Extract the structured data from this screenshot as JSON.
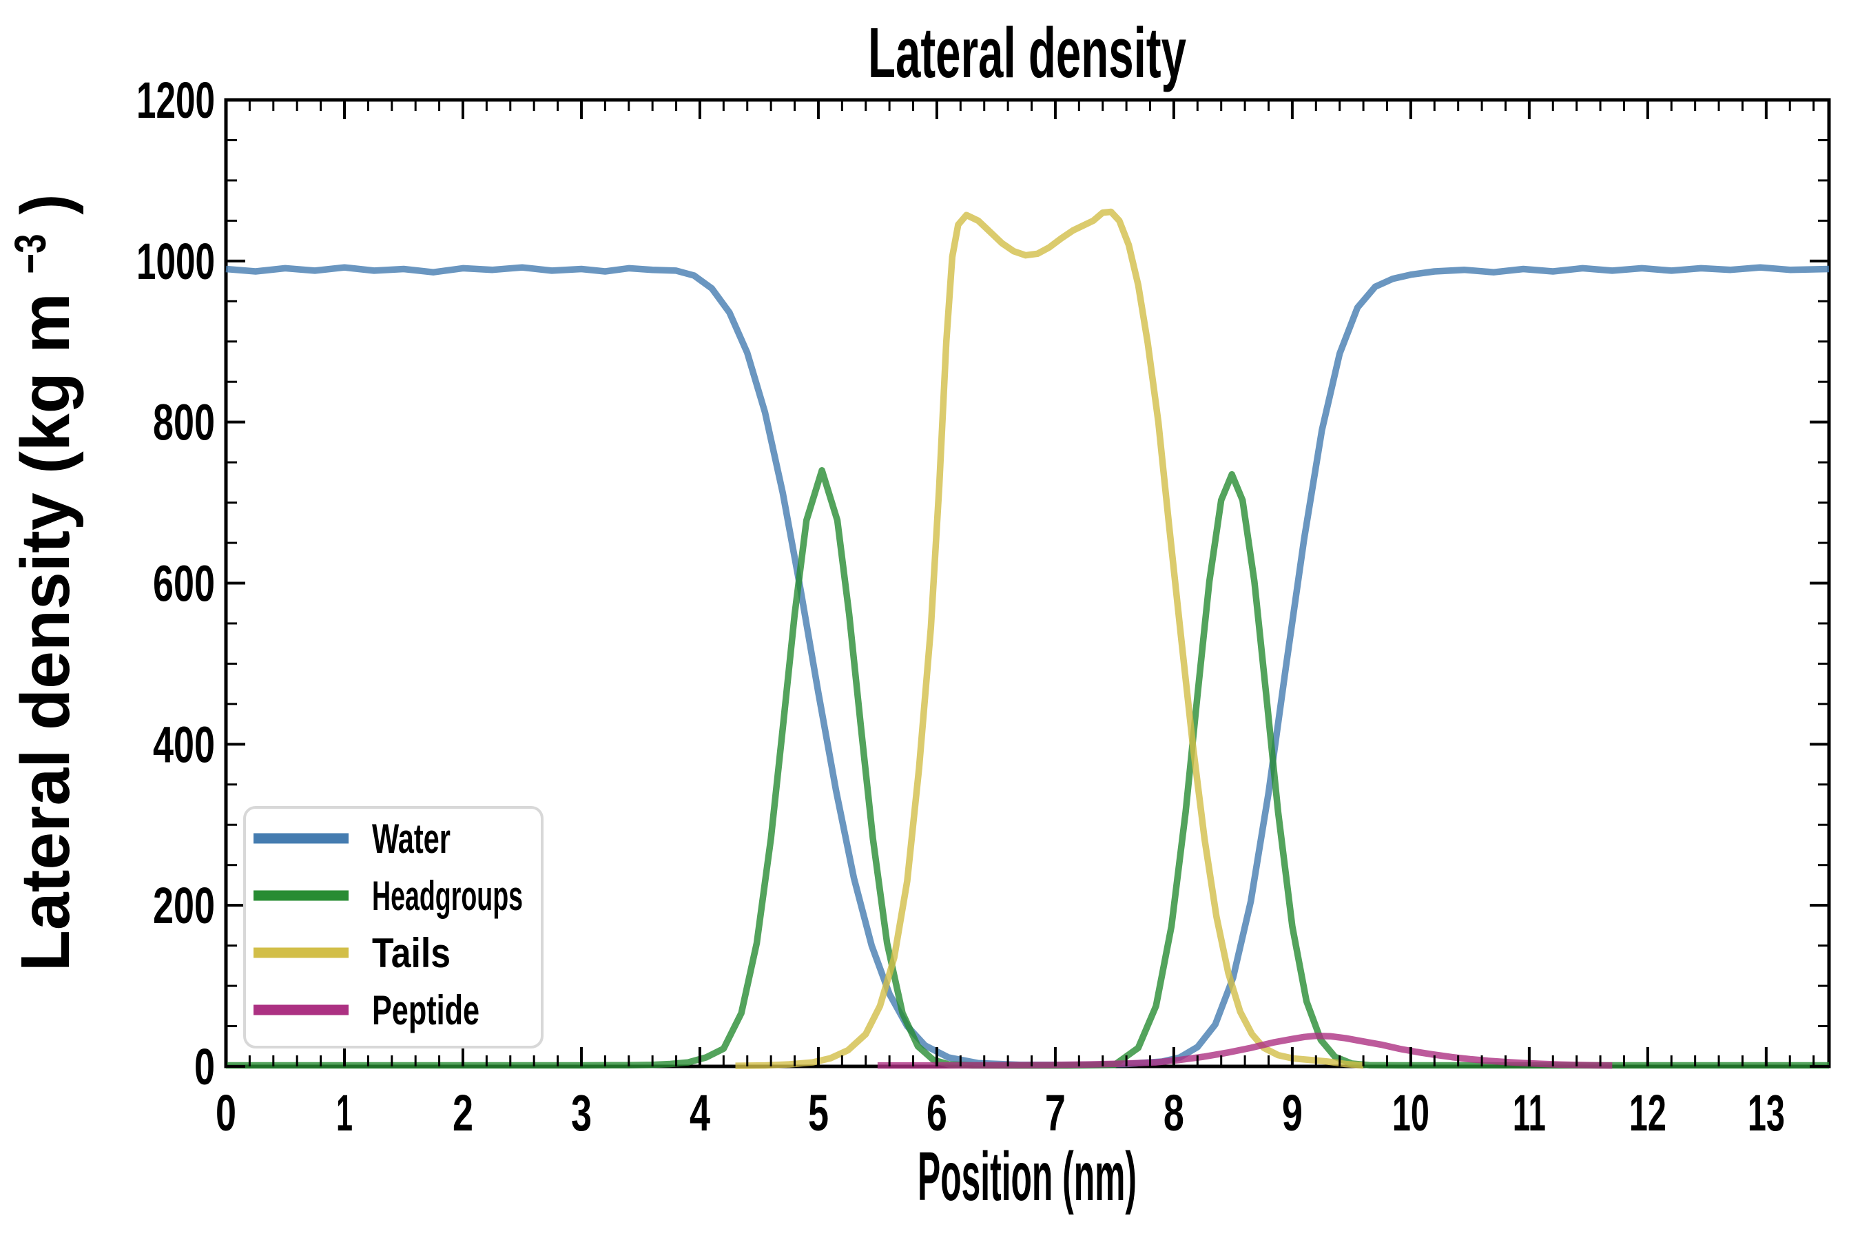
{
  "title": "Lateral density",
  "xlabel": "Position (nm)",
  "ylabel": {
    "main": "Lateral density (kg m",
    "sup": "−3",
    "close": ")"
  },
  "legend": {
    "border_color": "#d8d8d8",
    "bg_color": "#ffffff"
  },
  "chart_data": {
    "type": "line",
    "title": "Lateral density",
    "xlabel": "Position (nm)",
    "ylabel": "Lateral density (kg m^-3)",
    "xlim": [
      0,
      13.53
    ],
    "ylim": [
      0,
      1200
    ],
    "x_major_ticks": [
      0,
      1,
      2,
      3,
      4,
      5,
      6,
      7,
      8,
      9,
      10,
      11,
      12,
      13
    ],
    "y_major_ticks": [
      0,
      200,
      400,
      600,
      800,
      1000,
      1200
    ],
    "x_minor_step": 0.2,
    "y_minor_step": 50,
    "grid": false,
    "legend_position": "lower-left",
    "tick_direction": "in",
    "series": [
      {
        "name": "Water",
        "color": "#457CB0",
        "points": [
          [
            0,
            990
          ],
          [
            0.25,
            987
          ],
          [
            0.5,
            991
          ],
          [
            0.75,
            988
          ],
          [
            1.0,
            992
          ],
          [
            1.25,
            988
          ],
          [
            1.5,
            990
          ],
          [
            1.75,
            986
          ],
          [
            2.0,
            991
          ],
          [
            2.25,
            989
          ],
          [
            2.5,
            992
          ],
          [
            2.75,
            988
          ],
          [
            3.0,
            990
          ],
          [
            3.2,
            987
          ],
          [
            3.4,
            991
          ],
          [
            3.6,
            989
          ],
          [
            3.8,
            988
          ],
          [
            3.95,
            982
          ],
          [
            4.1,
            966
          ],
          [
            4.25,
            936
          ],
          [
            4.4,
            886
          ],
          [
            4.55,
            812
          ],
          [
            4.7,
            712
          ],
          [
            4.85,
            592
          ],
          [
            5.0,
            464
          ],
          [
            5.15,
            342
          ],
          [
            5.3,
            234
          ],
          [
            5.45,
            150
          ],
          [
            5.6,
            90
          ],
          [
            5.75,
            50
          ],
          [
            5.9,
            26
          ],
          [
            6.1,
            11
          ],
          [
            6.35,
            4
          ],
          [
            6.7,
            2
          ],
          [
            7.2,
            2
          ],
          [
            7.6,
            3
          ],
          [
            7.9,
            6
          ],
          [
            8.05,
            11
          ],
          [
            8.2,
            24
          ],
          [
            8.35,
            52
          ],
          [
            8.5,
            110
          ],
          [
            8.65,
            205
          ],
          [
            8.8,
            340
          ],
          [
            8.95,
            500
          ],
          [
            9.1,
            655
          ],
          [
            9.25,
            790
          ],
          [
            9.4,
            885
          ],
          [
            9.55,
            942
          ],
          [
            9.7,
            968
          ],
          [
            9.85,
            978
          ],
          [
            10.0,
            983
          ],
          [
            10.2,
            987
          ],
          [
            10.45,
            989
          ],
          [
            10.7,
            986
          ],
          [
            10.95,
            990
          ],
          [
            11.2,
            987
          ],
          [
            11.45,
            991
          ],
          [
            11.7,
            988
          ],
          [
            11.95,
            991
          ],
          [
            12.2,
            988
          ],
          [
            12.45,
            991
          ],
          [
            12.7,
            989
          ],
          [
            12.95,
            992
          ],
          [
            13.2,
            989
          ],
          [
            13.53,
            990
          ]
        ]
      },
      {
        "name": "Headgroups",
        "color": "#288C33",
        "points": [
          [
            0,
            1.3
          ],
          [
            0.6,
            1.3
          ],
          [
            1.2,
            1.3
          ],
          [
            1.8,
            1.3
          ],
          [
            2.4,
            1.3
          ],
          [
            3.0,
            1.3
          ],
          [
            3.4,
            1.5
          ],
          [
            3.6,
            2
          ],
          [
            3.75,
            3
          ],
          [
            3.9,
            5
          ],
          [
            4.05,
            11
          ],
          [
            4.2,
            22
          ],
          [
            4.35,
            66
          ],
          [
            4.48,
            153
          ],
          [
            4.6,
            283
          ],
          [
            4.7,
            420
          ],
          [
            4.8,
            561
          ],
          [
            4.9,
            678
          ],
          [
            5.03,
            740
          ],
          [
            5.16,
            678
          ],
          [
            5.26,
            561
          ],
          [
            5.36,
            420
          ],
          [
            5.46,
            283
          ],
          [
            5.58,
            153
          ],
          [
            5.71,
            66
          ],
          [
            5.84,
            25
          ],
          [
            5.97,
            8
          ],
          [
            6.1,
            2.5
          ],
          [
            6.3,
            1.3
          ],
          [
            6.7,
            1.1
          ],
          [
            7.1,
            1.1
          ],
          [
            7.5,
            2
          ],
          [
            7.7,
            23
          ],
          [
            7.85,
            75
          ],
          [
            7.98,
            174
          ],
          [
            8.1,
            316
          ],
          [
            8.2,
            461
          ],
          [
            8.3,
            602
          ],
          [
            8.4,
            703
          ],
          [
            8.49,
            735
          ],
          [
            8.58,
            703
          ],
          [
            8.68,
            602
          ],
          [
            8.78,
            461
          ],
          [
            8.88,
            316
          ],
          [
            9.0,
            174
          ],
          [
            9.12,
            81
          ],
          [
            9.24,
            33
          ],
          [
            9.36,
            12
          ],
          [
            9.5,
            3.6
          ],
          [
            9.65,
            1.5
          ],
          [
            9.9,
            1.3
          ],
          [
            10.4,
            1.3
          ],
          [
            11.0,
            1.3
          ],
          [
            11.6,
            1.3
          ],
          [
            12.2,
            1.3
          ],
          [
            12.8,
            1.3
          ],
          [
            13.53,
            1.3
          ]
        ]
      },
      {
        "name": "Tails",
        "color": "#D2BE48",
        "points": [
          [
            4.3,
            0.8
          ],
          [
            4.55,
            1.2
          ],
          [
            4.75,
            2.5
          ],
          [
            4.95,
            5
          ],
          [
            5.1,
            10
          ],
          [
            5.25,
            20
          ],
          [
            5.4,
            40
          ],
          [
            5.52,
            75
          ],
          [
            5.64,
            135
          ],
          [
            5.75,
            230
          ],
          [
            5.85,
            370
          ],
          [
            5.95,
            545
          ],
          [
            6.02,
            720
          ],
          [
            6.08,
            900
          ],
          [
            6.13,
            1005
          ],
          [
            6.18,
            1045
          ],
          [
            6.25,
            1057
          ],
          [
            6.35,
            1050
          ],
          [
            6.45,
            1036
          ],
          [
            6.55,
            1022
          ],
          [
            6.65,
            1012
          ],
          [
            6.75,
            1007
          ],
          [
            6.85,
            1009
          ],
          [
            6.95,
            1017
          ],
          [
            7.05,
            1028
          ],
          [
            7.15,
            1038
          ],
          [
            7.25,
            1045
          ],
          [
            7.32,
            1050
          ],
          [
            7.4,
            1060
          ],
          [
            7.47,
            1061
          ],
          [
            7.54,
            1050
          ],
          [
            7.62,
            1020
          ],
          [
            7.7,
            970
          ],
          [
            7.78,
            898
          ],
          [
            7.87,
            800
          ],
          [
            7.96,
            672
          ],
          [
            8.06,
            535
          ],
          [
            8.16,
            400
          ],
          [
            8.26,
            282
          ],
          [
            8.36,
            186
          ],
          [
            8.46,
            116
          ],
          [
            8.56,
            68
          ],
          [
            8.66,
            40
          ],
          [
            8.76,
            23
          ],
          [
            8.88,
            14
          ],
          [
            9.0,
            10
          ],
          [
            9.15,
            8
          ],
          [
            9.3,
            6
          ],
          [
            9.45,
            3
          ],
          [
            9.6,
            1.2
          ]
        ]
      },
      {
        "name": "Peptide",
        "color": "#AC3182",
        "points": [
          [
            5.5,
            1.2
          ],
          [
            6.0,
            1.2
          ],
          [
            6.5,
            1.4
          ],
          [
            7.0,
            1.8
          ],
          [
            7.3,
            2.5
          ],
          [
            7.6,
            3.5
          ],
          [
            7.85,
            5
          ],
          [
            8.05,
            8
          ],
          [
            8.25,
            12
          ],
          [
            8.45,
            17
          ],
          [
            8.65,
            23
          ],
          [
            8.85,
            30
          ],
          [
            9.0,
            34
          ],
          [
            9.1,
            36.5
          ],
          [
            9.2,
            38
          ],
          [
            9.32,
            37.5
          ],
          [
            9.45,
            35
          ],
          [
            9.6,
            31
          ],
          [
            9.75,
            27
          ],
          [
            9.9,
            22
          ],
          [
            10.05,
            18
          ],
          [
            10.2,
            14.5
          ],
          [
            10.35,
            11.5
          ],
          [
            10.5,
            9
          ],
          [
            10.65,
            7
          ],
          [
            10.8,
            5.5
          ],
          [
            10.95,
            4.2
          ],
          [
            11.1,
            3.2
          ],
          [
            11.25,
            2.4
          ],
          [
            11.4,
            1.8
          ],
          [
            11.55,
            1.4
          ],
          [
            11.7,
            1.1
          ]
        ]
      }
    ]
  }
}
